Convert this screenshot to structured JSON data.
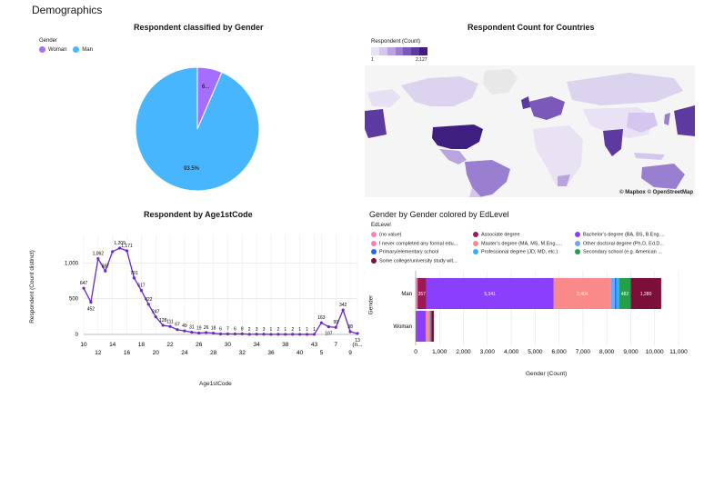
{
  "page": {
    "title": "Demographics"
  },
  "gender_pie": {
    "title": "Respondent classified by Gender",
    "legend_title": "Gender",
    "legend": [
      {
        "label": "Woman",
        "color": "#a56eff"
      },
      {
        "label": "Man",
        "color": "#48b6ff"
      }
    ],
    "labels": {
      "woman": "6...",
      "man": "93.5%"
    }
  },
  "countries_map": {
    "title": "Respondent Count for Countries",
    "legend_title": "Respondent (Count)",
    "min_label": "1",
    "max_label": "2,127",
    "attribution": "© Mapbox © OpenStreetMap",
    "colors": [
      "#e8e2f4",
      "#d4c6ee",
      "#b9a4e0",
      "#9a7fd0",
      "#7a59bb",
      "#5c3aa0",
      "#3e1f80"
    ]
  },
  "age_line": {
    "title": "Respondent by Age1stCode",
    "xlabel": "Age1stCode",
    "ylabel": "Respondent (Count distinct)"
  },
  "edlevel_bar": {
    "title": "Gender by Gender colored by EdLevel",
    "legend_title": "EdLevel",
    "legend": [
      {
        "label": "(no value)",
        "color": "#ff7eb6"
      },
      {
        "label": "Associate degree",
        "color": "#9f1853"
      },
      {
        "label": "Bachelor’s degree (BA, BS, B.Eng....",
        "color": "#8a3ffc"
      },
      {
        "label": "I never completed any formal edu...",
        "color": "#ff7eb6"
      },
      {
        "label": "Master’s degree (MA, MS, M.Eng.,...",
        "color": "#fa8a8a"
      },
      {
        "label": "Other doctoral degree (Ph.D, Ed.D...",
        "color": "#6fa8f5"
      },
      {
        "label": "Primary/elementary school",
        "color": "#1f6cf0"
      },
      {
        "label": "Professional degree (JD, MD, etc.)",
        "color": "#33b1ff"
      },
      {
        "label": "Secondary school (e.g. American ...",
        "color": "#24a148"
      },
      {
        "label": "Some college/university study wit...",
        "color": "#7b0f3a"
      }
    ],
    "xlabel": "Gender (Count)",
    "ylabel": "Gender"
  },
  "chart_data": [
    {
      "type": "pie",
      "title": "Respondent classified by Gender",
      "categories": [
        "Woman",
        "Man"
      ],
      "values": [
        6.5,
        93.5
      ],
      "unit": "%"
    },
    {
      "type": "line",
      "title": "Respondent by Age1stCode",
      "xlabel": "Age1stCode",
      "ylabel": "Respondent (Count distinct)",
      "x": [
        "10",
        "11",
        "12",
        "13",
        "14",
        "15",
        "16",
        "17",
        "18",
        "19",
        "20",
        "21",
        "22",
        "23",
        "24",
        "25",
        "26",
        "27",
        "28",
        "29",
        "30",
        "31",
        "32",
        "33",
        "34",
        "35",
        "36",
        "37",
        "38",
        "39",
        "40",
        "41",
        "43",
        "5",
        "6",
        "7",
        "8",
        "9",
        "(n..."
      ],
      "x_ticks": [
        "10",
        "12",
        "14",
        "16",
        "18",
        "20",
        "22",
        "24",
        "26",
        "28",
        "30",
        "32",
        "34",
        "36",
        "38",
        "40",
        "43",
        "5",
        "7",
        "9",
        "(n..."
      ],
      "values": [
        647,
        452,
        1062,
        887,
        1159,
        1209,
        1171,
        791,
        617,
        422,
        247,
        128,
        111,
        67,
        49,
        31,
        19,
        26,
        18,
        6,
        7,
        6,
        8,
        2,
        3,
        3,
        1,
        2,
        1,
        2,
        1,
        1,
        1,
        163,
        107,
        99,
        342,
        38,
        13
      ],
      "point_labels": [
        "647",
        "452",
        "1,062",
        "887",
        "",
        "1,209",
        "1,171",
        "791",
        "617",
        "422",
        "247",
        "128",
        "111",
        "67",
        "49",
        "31",
        "19",
        "26",
        "18",
        "6",
        "7",
        "6",
        "8",
        "2",
        "3",
        "3",
        "1",
        "2",
        "1",
        "2",
        "1",
        "1",
        "1",
        "163",
        "107",
        "99",
        "342",
        "38",
        "13"
      ],
      "ylim": [
        0,
        1400
      ],
      "yticks": [
        0,
        500,
        1000
      ],
      "ytick_labels": [
        "0",
        "500",
        "1,000"
      ],
      "grid": true
    },
    {
      "type": "bar",
      "orientation": "horizontal",
      "stacked": true,
      "title": "Gender by Gender colored by EdLevel",
      "categories": [
        "Man",
        "Woman"
      ],
      "xlabel": "Gender (Count)",
      "ylabel": "Gender",
      "xlim": [
        0,
        11000
      ],
      "xticks": [
        0,
        1000,
        2000,
        3000,
        4000,
        5000,
        6000,
        7000,
        8000,
        9000,
        10000,
        11000
      ],
      "xtick_labels": [
        "0",
        "1,000",
        "2,000",
        "3,000",
        "4,000",
        "5,000",
        "6,000",
        "7,000",
        "8,000",
        "9,000",
        "10,000",
        "11,000"
      ],
      "series": [
        {
          "name": "(no value)",
          "color": "#ff7eb6",
          "values": [
            80,
            20
          ]
        },
        {
          "name": "Associate degree",
          "color": "#9f1853",
          "values": [
            357,
            30
          ],
          "labels": [
            "357",
            ""
          ]
        },
        {
          "name": "Bachelor’s degree (BA, BS, B.Eng....",
          "color": "#8a3ffc",
          "values": [
            5341,
            380
          ],
          "labels": [
            "5,341",
            ""
          ]
        },
        {
          "name": "Master’s degree (MA, MS, M.Eng.,...",
          "color": "#fa8a8a",
          "values": [
            2404,
            160
          ],
          "labels": [
            "2,404",
            ""
          ]
        },
        {
          "name": "Other doctoral degree (Ph.D, Ed.D...",
          "color": "#6fa8f5",
          "values": [
            150,
            15
          ]
        },
        {
          "name": "Primary/elementary school",
          "color": "#1f6cf0",
          "values": [
            60,
            5
          ]
        },
        {
          "name": "Professional degree (JD, MD, etc.)",
          "color": "#33b1ff",
          "values": [
            120,
            10
          ]
        },
        {
          "name": "Secondary school (e.g. American ...",
          "color": "#24a148",
          "values": [
            482,
            40
          ],
          "labels": [
            "482",
            ""
          ]
        },
        {
          "name": "Some college/university study wit...",
          "color": "#7b0f3a",
          "values": [
            1280,
            100
          ],
          "labels": [
            "1,280",
            ""
          ]
        }
      ]
    }
  ]
}
